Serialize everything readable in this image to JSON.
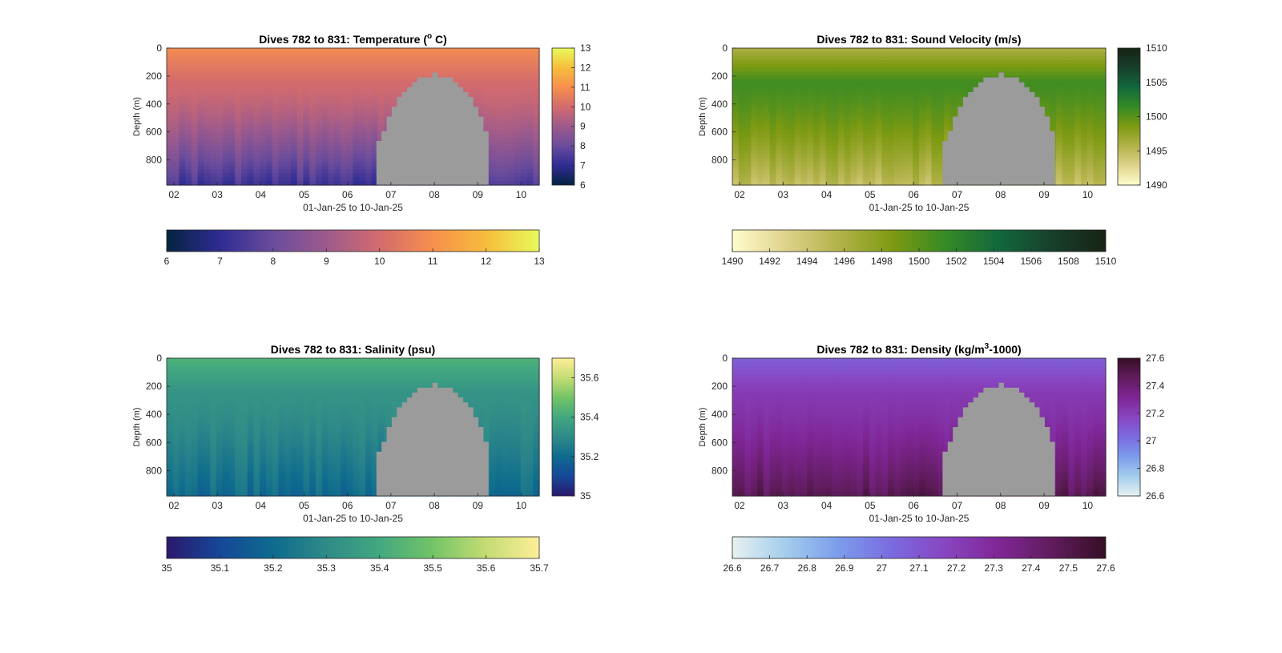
{
  "figure": {
    "xaxis_label": "01-Jan-25 to 10-Jan-25",
    "yaxis_label": "Depth (m)",
    "date_ticks": [
      "02",
      "03",
      "04",
      "05",
      "06",
      "07",
      "08",
      "09",
      "10"
    ],
    "depth_ticks": [
      0,
      200,
      400,
      600,
      800
    ]
  },
  "chart_data": [
    {
      "type": "heatmap",
      "title": "Dives 782 to 831: Temperature (",
      "title_super": "o",
      "title_tail": " C)",
      "xlabel": "01-Jan-25 to 10-Jan-25",
      "ylabel": "Depth (m)",
      "xlim": [
        "2025-01-01T20:00",
        "2025-01-10T10:00"
      ],
      "ylim": [
        0,
        980
      ],
      "y_reversed": true,
      "x_tick_labels": [
        "02",
        "03",
        "04",
        "05",
        "06",
        "07",
        "08",
        "09",
        "10"
      ],
      "y_tick_labels": [
        "0",
        "200",
        "400",
        "600",
        "800"
      ],
      "clim": [
        6,
        13
      ],
      "colormap": "thermal",
      "side_colorbar_ticks": [
        "13",
        "12",
        "11",
        "10",
        "9",
        "8",
        "7",
        "6"
      ],
      "bottom_colorbar_ticks": [
        "6",
        "7",
        "8",
        "9",
        "10",
        "11",
        "12",
        "13"
      ],
      "profile": {
        "surface": 10.9,
        "mid": 10.0,
        "deep": 7.3
      },
      "no_data_color": "#9b9b9b"
    },
    {
      "type": "heatmap",
      "title": "Dives 782 to 831: Sound Velocity (m/s)",
      "xlabel": "01-Jan-25 to 10-Jan-25",
      "ylabel": "Depth (m)",
      "xlim": [
        "2025-01-01T20:00",
        "2025-01-10T10:00"
      ],
      "ylim": [
        0,
        980
      ],
      "y_reversed": true,
      "x_tick_labels": [
        "02",
        "03",
        "04",
        "05",
        "06",
        "07",
        "08",
        "09",
        "10"
      ],
      "y_tick_labels": [
        "0",
        "200",
        "400",
        "600",
        "800"
      ],
      "clim": [
        1490,
        1510
      ],
      "colormap": "speed",
      "side_colorbar_ticks": [
        "1510",
        "1505",
        "1500",
        "1495",
        "1490"
      ],
      "bottom_colorbar_ticks": [
        "1490",
        "1492",
        "1494",
        "1496",
        "1498",
        "1500",
        "1502",
        "1504",
        "1506",
        "1508",
        "1510"
      ],
      "profile": {
        "surface": 1496,
        "mid": 1501,
        "deep": 1495
      },
      "no_data_color": "#9b9b9b"
    },
    {
      "type": "heatmap",
      "title": "Dives 782 to 831: Salinity (psu)",
      "xlabel": "01-Jan-25 to 10-Jan-25",
      "ylabel": "Depth (m)",
      "xlim": [
        "2025-01-01T20:00",
        "2025-01-10T10:00"
      ],
      "ylim": [
        0,
        980
      ],
      "y_reversed": true,
      "x_tick_labels": [
        "02",
        "03",
        "04",
        "05",
        "06",
        "07",
        "08",
        "09",
        "10"
      ],
      "y_tick_labels": [
        "0",
        "200",
        "400",
        "600",
        "800"
      ],
      "clim": [
        35,
        35.7
      ],
      "colormap": "haline",
      "side_colorbar_ticks": [
        "35.6",
        "35.4",
        "35.2",
        "35"
      ],
      "bottom_colorbar_ticks": [
        "35",
        "35.1",
        "35.2",
        "35.3",
        "35.4",
        "35.5",
        "35.6",
        "35.7"
      ],
      "profile": {
        "surface": 35.43,
        "mid": 35.33,
        "deep": 35.2
      },
      "no_data_color": "#9b9b9b"
    },
    {
      "type": "heatmap",
      "title": "Dives 782 to 831: Density (kg/m",
      "title_super": "3",
      "title_tail": "-1000)",
      "xlabel": "01-Jan-25 to 10-Jan-25",
      "ylabel": "Depth (m)",
      "xlim": [
        "2025-01-01T20:00",
        "2025-01-10T10:00"
      ],
      "ylim": [
        0,
        980
      ],
      "y_reversed": true,
      "x_tick_labels": [
        "02",
        "03",
        "04",
        "05",
        "06",
        "07",
        "08",
        "09",
        "10"
      ],
      "y_tick_labels": [
        "0",
        "200",
        "400",
        "600",
        "800"
      ],
      "clim": [
        26.6,
        27.6
      ],
      "colormap": "dense",
      "side_colorbar_ticks": [
        "27.6",
        "27.4",
        "27.2",
        "27",
        "26.8",
        "26.6"
      ],
      "bottom_colorbar_ticks": [
        "26.6",
        "26.7",
        "26.8",
        "26.9",
        "27",
        "27.1",
        "27.2",
        "27.3",
        "27.4",
        "27.5",
        "27.6"
      ],
      "profile": {
        "surface": 27.07,
        "mid": 27.22,
        "deep": 27.48
      },
      "no_data_color": "#9b9b9b"
    }
  ],
  "colormaps": {
    "thermal": [
      "#04233f",
      "#2f2c93",
      "#6a4c9c",
      "#9d5a8c",
      "#d36b6e",
      "#f78f4e",
      "#f7bd3c",
      "#e8fa5b"
    ],
    "speed": [
      "#fffdcd",
      "#dfd28b",
      "#b2b24a",
      "#7e9a12",
      "#358a25",
      "#12683c",
      "#173f2c",
      "#172313"
    ],
    "haline": [
      "#2a186c",
      "#164798",
      "#0e6b8e",
      "#2f8a88",
      "#42a87f",
      "#73c467",
      "#c4dc73",
      "#fdee99"
    ],
    "dense": [
      "#e6f1f1",
      "#a4cdec",
      "#7b9ceb",
      "#7b6ae0",
      "#8845c0",
      "#7f2696",
      "#601c5c",
      "#360e24"
    ]
  },
  "gap": {
    "start": "2025-01-06T16:00",
    "end": "2025-01-09T06:00",
    "min_depth_m": 190
  }
}
